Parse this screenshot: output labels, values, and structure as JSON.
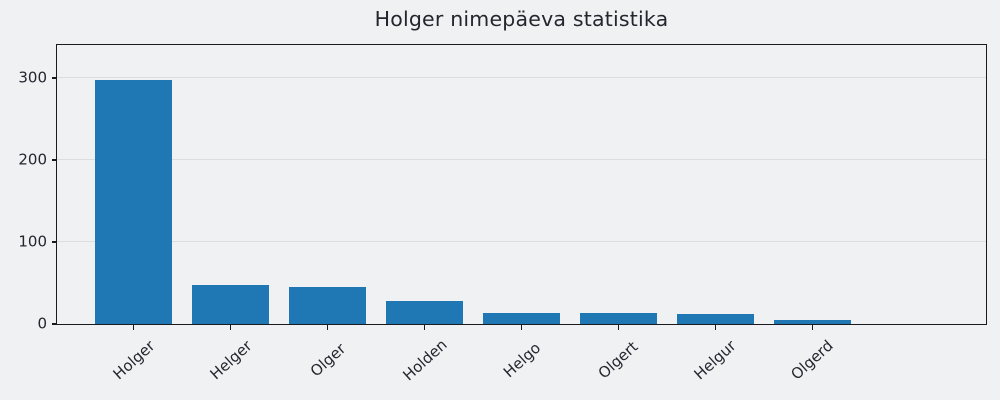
{
  "chart_data": {
    "type": "bar",
    "title": "Holger nimepäeva statistika",
    "categories": [
      "Holger",
      "Helger",
      "Olger",
      "Holden",
      "Helgo",
      "Olgert",
      "Helgur",
      "Olgerd"
    ],
    "values": [
      297,
      48,
      45,
      28,
      14,
      14,
      12,
      5
    ],
    "xlabel": "",
    "ylabel": "",
    "yticks": [
      0,
      100,
      200,
      300
    ],
    "ylim": [
      0,
      340
    ],
    "grid": true,
    "legend": false,
    "x_tick_rotation_deg": 42,
    "colors": {
      "bar": "#1f77b4",
      "figure_background": "#f0f1f2",
      "grid": "#dcdde1",
      "spine": "#1a1b22",
      "text": "#24262f"
    }
  }
}
